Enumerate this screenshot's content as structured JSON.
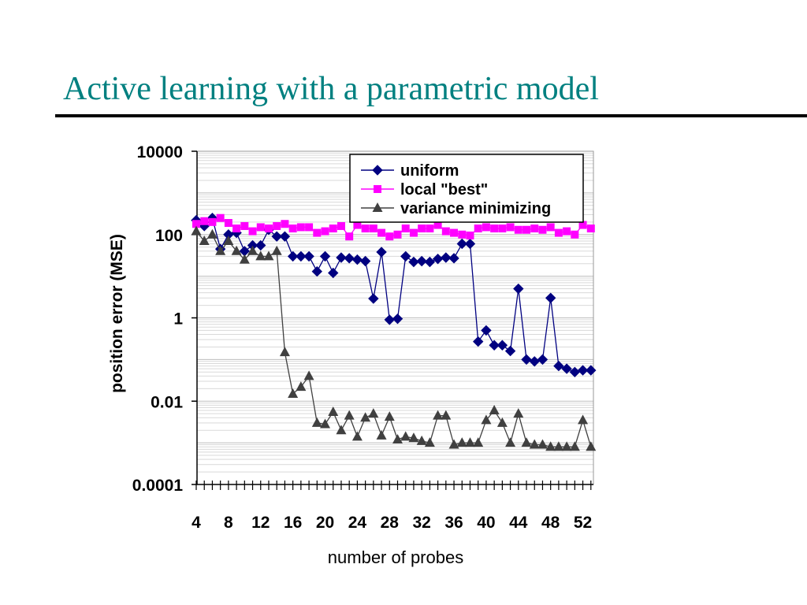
{
  "slide": {
    "title": "Active learning with a parametric model"
  },
  "chart_data": {
    "type": "line",
    "title": "",
    "xlabel": "number of probes",
    "ylabel": "position error (MSE)",
    "yscale": "log",
    "ylim": [
      0.0001,
      10000
    ],
    "yticks": [
      "10000",
      "100",
      "1",
      "0.01",
      "0.0001"
    ],
    "ytick_values": [
      10000,
      100,
      1,
      0.01,
      0.0001
    ],
    "xlim": [
      4,
      53
    ],
    "xticks": [
      "4",
      "8",
      "12",
      "16",
      "20",
      "24",
      "28",
      "32",
      "36",
      "40",
      "44",
      "48",
      "52"
    ],
    "xtick_values": [
      4,
      8,
      12,
      16,
      20,
      24,
      28,
      32,
      36,
      40,
      44,
      48,
      52
    ],
    "grid": "horizontal",
    "legend_position": "top-right",
    "x": [
      4,
      5,
      6,
      7,
      8,
      9,
      10,
      11,
      12,
      13,
      14,
      15,
      16,
      17,
      18,
      19,
      20,
      21,
      22,
      23,
      24,
      25,
      26,
      27,
      28,
      29,
      30,
      31,
      32,
      33,
      34,
      35,
      36,
      37,
      38,
      39,
      40,
      41,
      42,
      43,
      44,
      45,
      46,
      47,
      48,
      49,
      50,
      51,
      52,
      53
    ],
    "series": [
      {
        "name": "uniform",
        "color": "#000080",
        "marker": "diamond",
        "values": [
          220,
          160,
          250,
          45,
          100,
          110,
          40,
          55,
          55,
          130,
          90,
          90,
          30,
          30,
          30,
          13,
          30,
          12,
          28,
          27,
          25,
          23,
          2.9,
          38,
          0.9,
          0.95,
          30,
          22,
          23,
          22,
          26,
          28,
          27,
          60,
          60,
          0.27,
          0.5,
          0.22,
          0.22,
          0.16,
          5,
          0.1,
          0.09,
          0.1,
          3,
          0.07,
          0.06,
          0.05,
          0.055,
          0.055
        ]
      },
      {
        "name": "local \"best\"",
        "color": "#ff00ff",
        "marker": "square",
        "values": [
          180,
          210,
          200,
          250,
          190,
          140,
          160,
          120,
          150,
          140,
          160,
          180,
          140,
          150,
          150,
          110,
          120,
          140,
          160,
          90,
          170,
          140,
          140,
          110,
          90,
          100,
          140,
          110,
          140,
          140,
          170,
          120,
          110,
          100,
          95,
          140,
          150,
          140,
          140,
          150,
          130,
          130,
          140,
          130,
          150,
          110,
          120,
          100,
          170,
          140
        ]
      },
      {
        "name": "variance minimizing",
        "color": "#404040",
        "marker": "triangle",
        "values": [
          120,
          70,
          100,
          40,
          70,
          40,
          25,
          40,
          30,
          30,
          40,
          0.15,
          0.015,
          0.022,
          0.04,
          0.003,
          0.0028,
          0.0055,
          0.002,
          0.0045,
          0.0014,
          0.004,
          0.005,
          0.0015,
          0.0042,
          0.0012,
          0.0014,
          0.0013,
          0.0011,
          0.001,
          0.0045,
          0.0045,
          0.0009,
          0.001,
          0.001,
          0.001,
          0.0035,
          0.006,
          0.003,
          0.001,
          0.005,
          0.001,
          0.0009,
          0.0009,
          0.0008,
          0.0008,
          0.0008,
          0.0008,
          0.0035,
          0.0008
        ]
      }
    ]
  }
}
